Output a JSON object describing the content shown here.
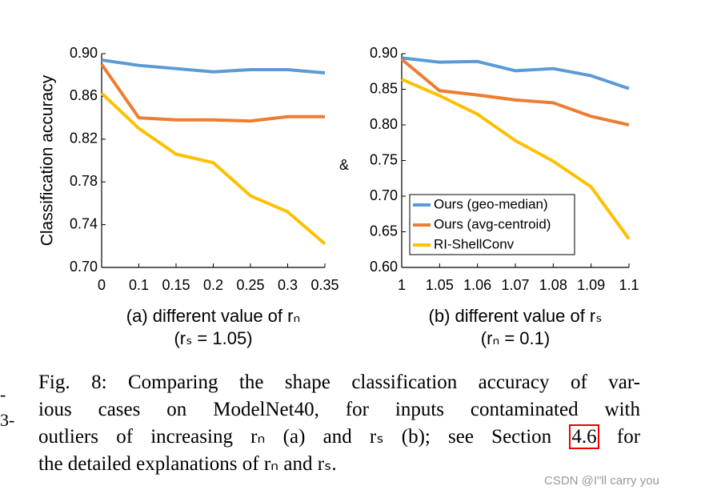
{
  "chart_data": [
    {
      "type": "line",
      "ylabel": "Classification accuracy",
      "xlabel": "(a) different value of rₙ",
      "xlabel_note": "(rₛ = 1.05)",
      "categories": [
        "0",
        "0.1",
        "0.15",
        "0.2",
        "0.25",
        "0.3",
        "0.35"
      ],
      "series": [
        {
          "name": "Ours (geo-median)",
          "color": "#5b9bd5",
          "values": [
            0.894,
            0.889,
            0.886,
            0.883,
            0.885,
            0.885,
            0.882
          ]
        },
        {
          "name": "Ours (avg-centroid)",
          "color": "#ed7d31",
          "values": [
            0.89,
            0.84,
            0.838,
            0.838,
            0.837,
            0.841,
            0.841
          ]
        },
        {
          "name": "RI-ShellConv",
          "color": "#ffc000",
          "values": [
            0.863,
            0.83,
            0.806,
            0.798,
            0.767,
            0.752,
            0.722
          ]
        }
      ],
      "ylim": [
        0.7,
        0.9
      ],
      "yticks": [
        {
          "value": 0.7,
          "label": "0.70"
        },
        0.74,
        0.78,
        0.82,
        0.86,
        {
          "value": 0.9,
          "label": "0.90"
        }
      ]
    },
    {
      "type": "line",
      "xlabel": "(b) different value of rₛ",
      "xlabel_note": "(rₙ = 0.1)",
      "categories": [
        "1",
        "1.05",
        "1.06",
        "1.07",
        "1.08",
        "1.09",
        "1.1"
      ],
      "series": [
        {
          "name": "Ours (geo-median)",
          "color": "#5b9bd5",
          "values": [
            0.894,
            0.888,
            0.889,
            0.876,
            0.879,
            0.869,
            0.851
          ]
        },
        {
          "name": "Ours (avg-centroid)",
          "color": "#ed7d31",
          "values": [
            0.892,
            0.848,
            0.842,
            0.835,
            0.831,
            0.812,
            0.8
          ]
        },
        {
          "name": "RI-ShellConv",
          "color": "#ffc000",
          "values": [
            0.864,
            0.841,
            0.815,
            0.778,
            0.749,
            0.713,
            0.64
          ]
        }
      ],
      "ylim": [
        0.6,
        0.9
      ],
      "yticks": [
        {
          "value": 0.6,
          "label": "0.60"
        },
        0.65,
        {
          "value": 0.7,
          "label": "0.70"
        },
        0.75,
        {
          "value": 0.8,
          "label": "0.80"
        },
        0.85,
        {
          "value": 0.9,
          "label": "0.90"
        }
      ],
      "legend": "lower left"
    }
  ],
  "separator": "&",
  "caption": {
    "lines": [
      "Fig. 8: Comparing the shape classification accuracy of var-",
      "ious cases on ModelNet40, for inputs contaminated with",
      "outliers of increasing rₙ (a) and rₛ (b); see Section",
      "the detailed explanations of rₙ and rₛ."
    ],
    "link": "4.6",
    "link_tail": "for"
  },
  "margin_marks": [
    "-",
    "3-"
  ],
  "watermark": "CSDN @I\"ll carry you"
}
